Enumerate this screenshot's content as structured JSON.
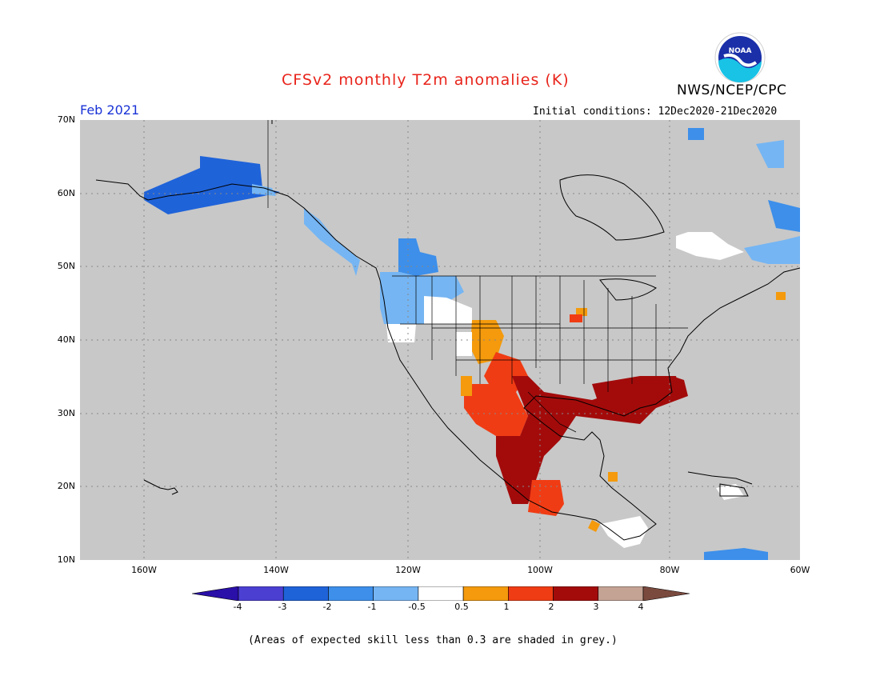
{
  "title": "CFSv2 monthly T2m anomalies (K)",
  "agency": "NWS/NCEP/CPC",
  "logo_text": "NOAA",
  "month": "Feb 2021",
  "initial_conditions": "Initial conditions: 12Dec2020-21Dec2020",
  "lat_labels": [
    "70N",
    "60N",
    "50N",
    "40N",
    "30N",
    "20N",
    "10N"
  ],
  "lon_labels": [
    "160W",
    "140W",
    "120W",
    "100W",
    "80W",
    "60W"
  ],
  "colorbar": {
    "labels": [
      "-4",
      "-3",
      "-2",
      "-1",
      "-0.5",
      "0.5",
      "1",
      "2",
      "3",
      "4"
    ],
    "colors": [
      "#2a0fa8",
      "#4b3fd2",
      "#1f63d9",
      "#3d8fea",
      "#75b5f3",
      "#ffffff",
      "#f49a0c",
      "#f03c14",
      "#a30b0b",
      "#c4a294",
      "#7a4a3e"
    ]
  },
  "footnote": "(Areas of expected skill less than 0.3 are shaded in grey.)",
  "colors": {
    "skill_grey": "#c8c8c8",
    "ocean_grey": "#c8c8c8",
    "boundary": "#000000"
  }
}
